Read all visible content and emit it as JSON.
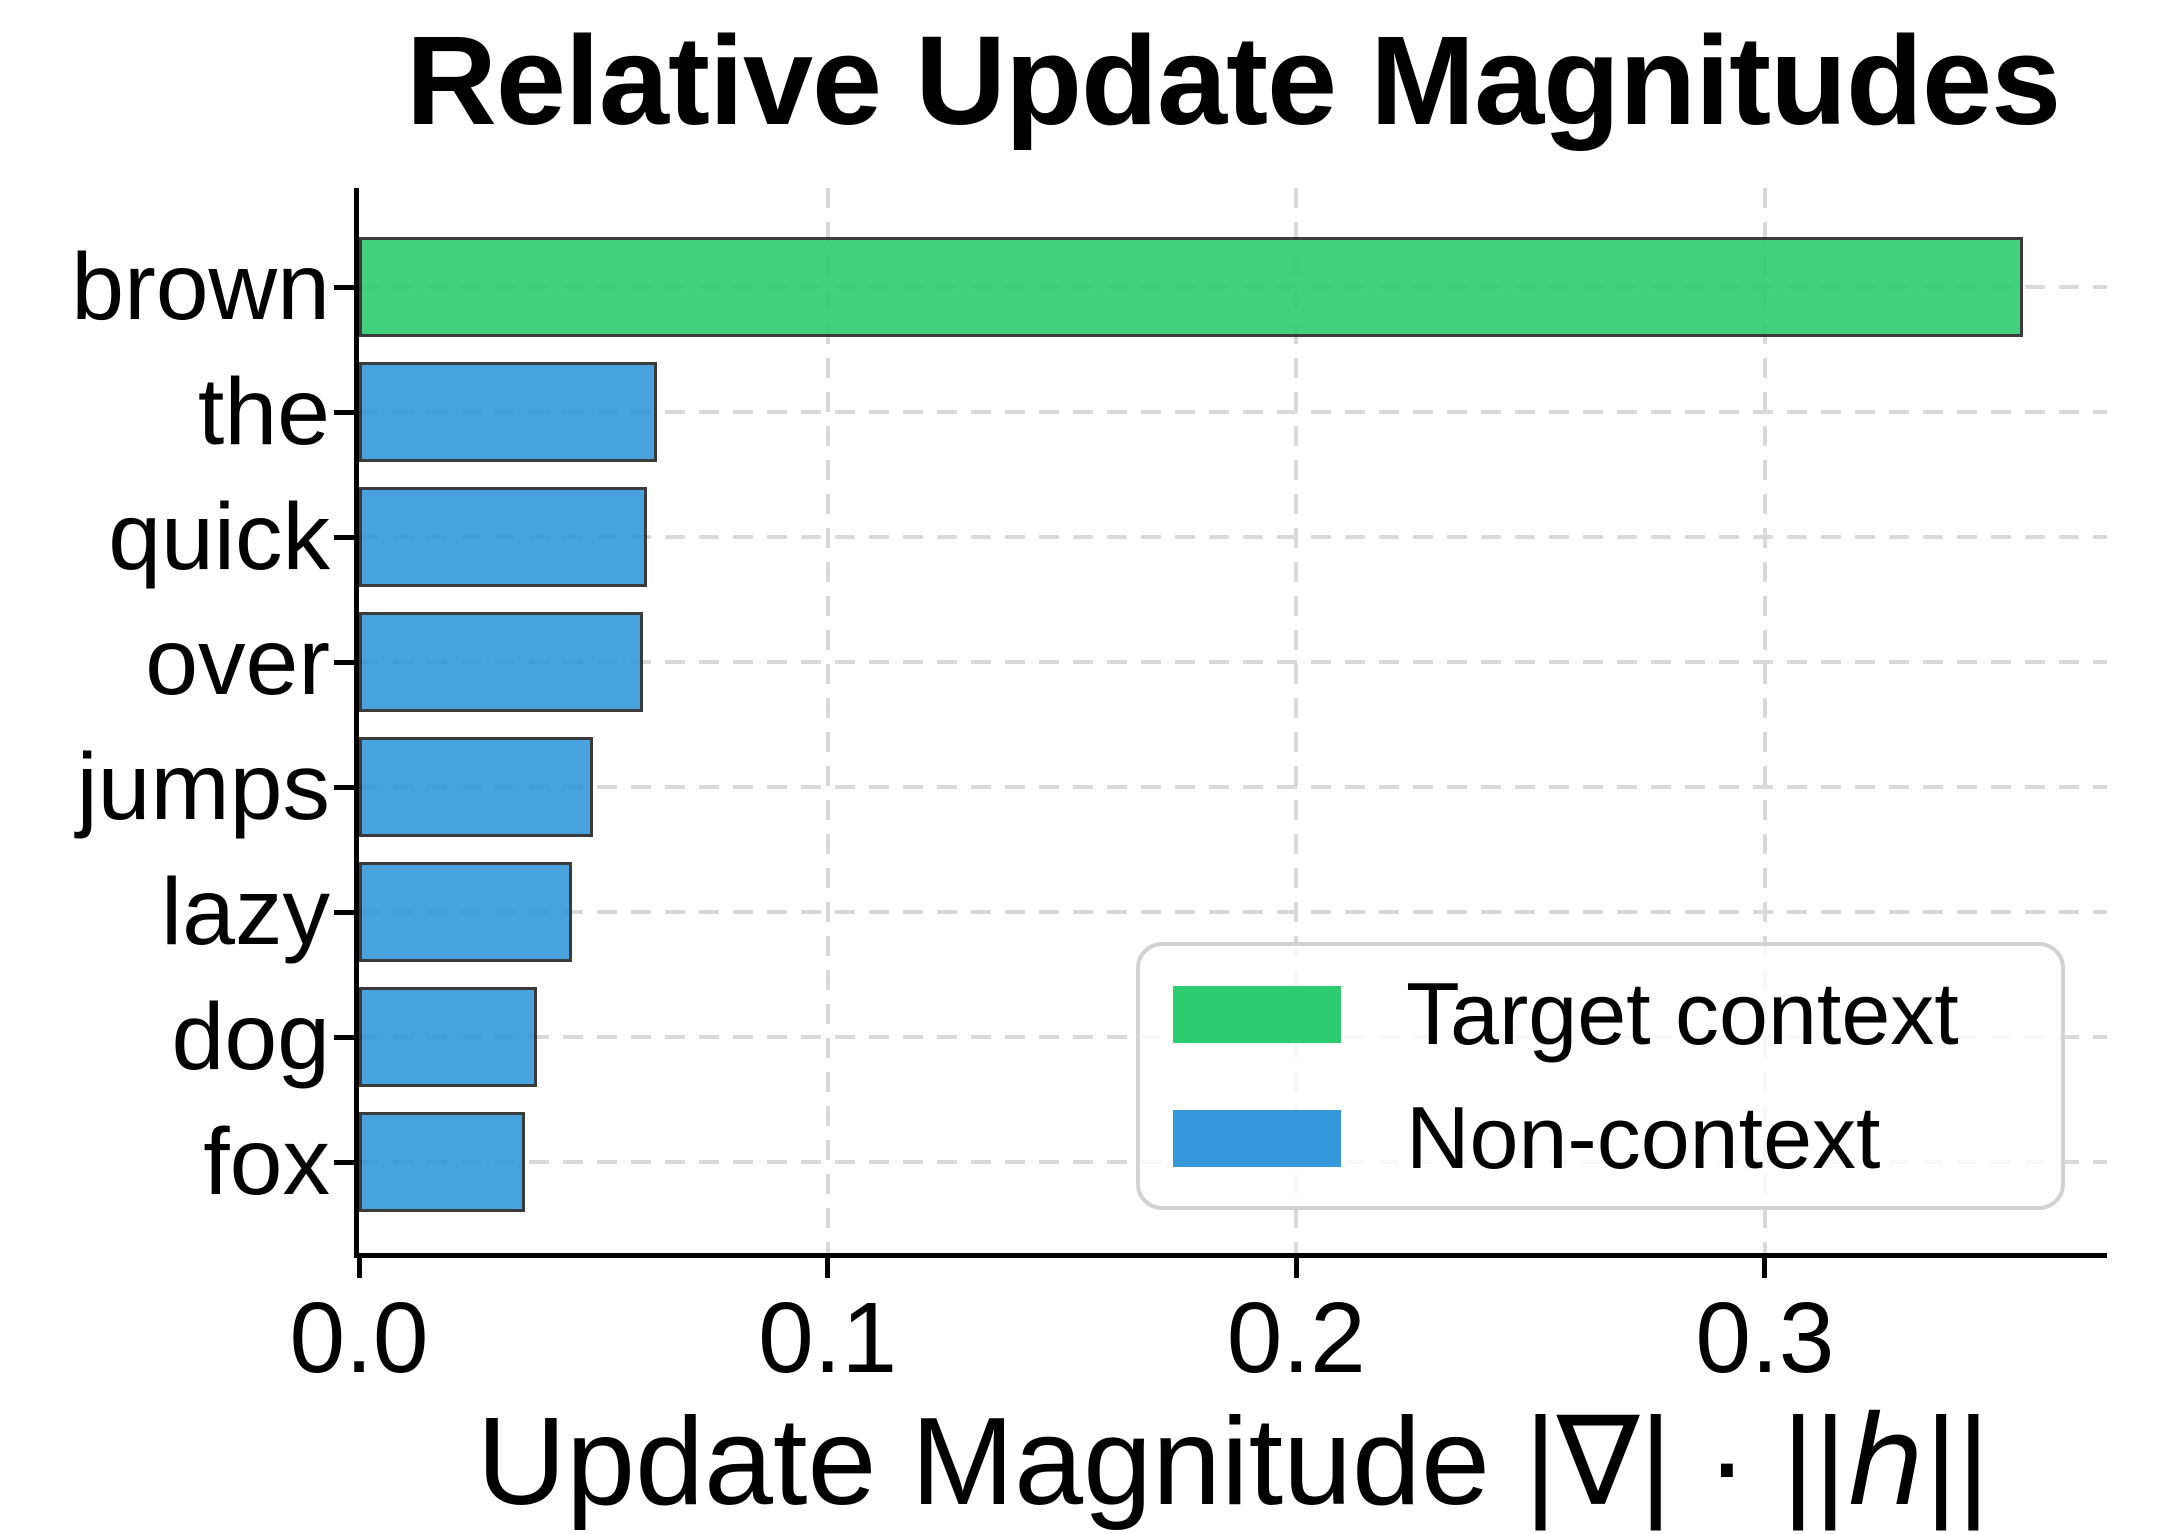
{
  "chart_data": {
    "type": "bar",
    "orientation": "horizontal",
    "title": "Relative Update Magnitudes",
    "xlabel": "Update Magnitude |∇| · ||ℎ||",
    "ylabel": "",
    "categories": [
      "brown",
      "the",
      "quick",
      "over",
      "jumps",
      "lazy",
      "dog",
      "fox"
    ],
    "values": [
      0.355,
      0.0635,
      0.0615,
      0.0605,
      0.05,
      0.0455,
      0.038,
      0.0355
    ],
    "groups": [
      "target",
      "non",
      "non",
      "non",
      "non",
      "non",
      "non",
      "non"
    ],
    "x_ticks": [
      0.0,
      0.1,
      0.2,
      0.3
    ],
    "x_tick_labels": [
      "0.0",
      "0.1",
      "0.2",
      "0.3"
    ],
    "xlim": [
      0,
      0.373
    ],
    "grid": "dashed horizontal line at each category center and dashed vertical line at each nonzero x tick, visible through semi-transparent bars and legend",
    "legend": {
      "position": "lower right",
      "entries": [
        {
          "label": "Target context",
          "group": "target"
        },
        {
          "label": "Non-context",
          "group": "non"
        }
      ]
    }
  },
  "colors": {
    "target": "#2ecc71",
    "non": "#3498db",
    "bar_edge": "#262626",
    "grid": "#d9d9d9",
    "axis": "#000000",
    "legend_border": "#d2d2d2",
    "background": "#ffffff"
  }
}
